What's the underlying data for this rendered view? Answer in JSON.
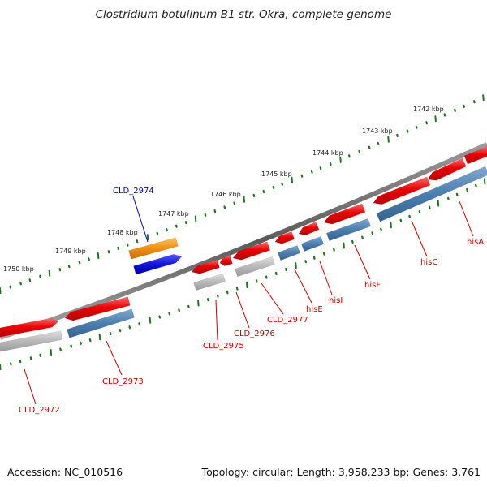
{
  "title": "Clostridium botulinum B1 str. Okra, complete genome",
  "footer": {
    "accession": "Accession: NC_010516",
    "info": "Topology: circular; Length: 3,958,233 bp; Genes: 3,761"
  },
  "scale_labels": [
    "1742 kbp",
    "1743 kbp",
    "1744 kbp",
    "1745 kbp",
    "1746 kbp",
    "1747 kbp",
    "1748 kbp",
    "1749 kbp",
    "1750 kbp"
  ],
  "gene_labels": [
    "CLD_2972",
    "CLD_2973",
    "CLD_2974",
    "CLD_2975",
    "CLD_2976",
    "CLD_2977",
    "hisE",
    "hisI",
    "hisF",
    "hisC",
    "hisA"
  ],
  "colors": {
    "cds_red": "#ee0000",
    "cds_blue": "#4a7fb0",
    "gray_feature": "#b8b8b8",
    "orange_feature": "#f0900a",
    "highlight_blue": "#1010e0",
    "tick_green": "#1a7a1a",
    "label_red": "#cc0000",
    "label_blue": "#0000cc",
    "backbone": "#777777"
  }
}
